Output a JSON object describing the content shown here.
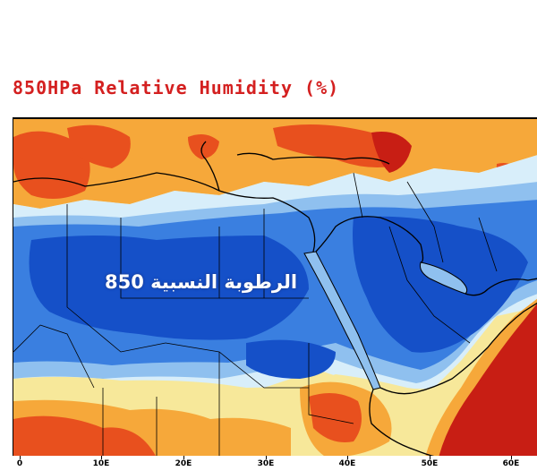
{
  "title": "850HPa Relative Humidity (%)",
  "overlay_label": "الرطوبة النسبية 850",
  "x_axis": {
    "ticks": [
      "0",
      "10E",
      "20E",
      "30E",
      "40E",
      "50E",
      "60E"
    ],
    "values": [
      0,
      10,
      20,
      30,
      40,
      50,
      60
    ]
  },
  "colors": {
    "title": "#d42020",
    "very_dry": "#1550c8",
    "dry": "#3a7fe0",
    "moderately_dry": "#8fc0ef",
    "neutral": "#d8eefa",
    "moist": "#f7e89a",
    "humid": "#f6a83a",
    "very_humid": "#e8501e",
    "saturated": "#c81e14"
  }
}
